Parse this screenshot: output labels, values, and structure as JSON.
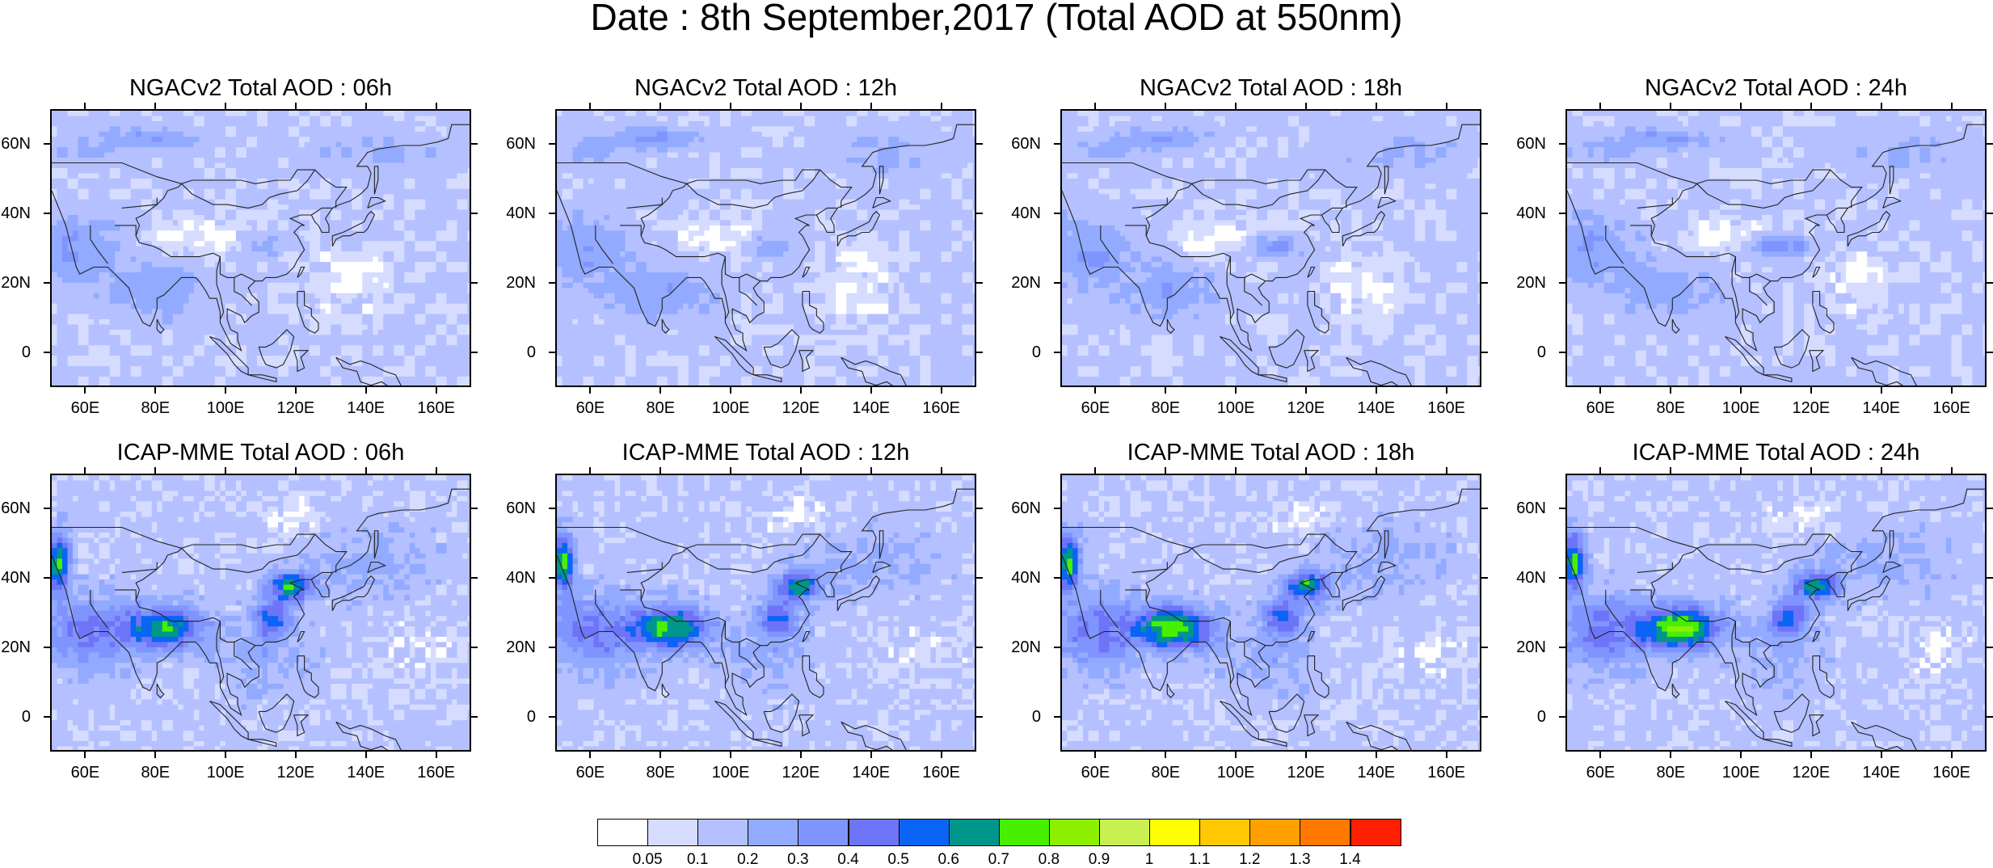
{
  "title": "Date : 8th September,2017 (Total AOD at 550nm)",
  "panels": [
    {
      "title": "NGACv2 Total AOD : 06h",
      "model": "NGACv2",
      "hour": "06h"
    },
    {
      "title": "NGACv2 Total AOD : 12h",
      "model": "NGACv2",
      "hour": "12h"
    },
    {
      "title": "NGACv2 Total AOD : 18h",
      "model": "NGACv2",
      "hour": "18h"
    },
    {
      "title": "NGACv2 Total AOD : 24h",
      "model": "NGACv2",
      "hour": "24h"
    },
    {
      "title": "ICAP-MME Total AOD : 06h",
      "model": "ICAP-MME",
      "hour": "06h"
    },
    {
      "title": "ICAP-MME Total AOD : 12h",
      "model": "ICAP-MME",
      "hour": "12h"
    },
    {
      "title": "ICAP-MME Total AOD : 18h",
      "model": "ICAP-MME",
      "hour": "18h"
    },
    {
      "title": "ICAP-MME Total AOD : 24h",
      "model": "ICAP-MME",
      "hour": "24h"
    }
  ],
  "lat_labels": [
    "60N",
    "40N",
    "20N",
    "0"
  ],
  "lat_values": [
    60,
    40,
    20,
    0
  ],
  "lon_labels": [
    "60E",
    "80E",
    "100E",
    "120E",
    "140E",
    "160E"
  ],
  "lon_values": [
    60,
    80,
    100,
    120,
    140,
    160
  ],
  "lat_range": [
    -10,
    70
  ],
  "lon_range": [
    50,
    170
  ],
  "colorbar": {
    "levels": [
      "0.05",
      "0.1",
      "0.2",
      "0.3",
      "0.4",
      "0.5",
      "0.6",
      "0.7",
      "0.8",
      "0.9",
      "1",
      "1.1",
      "1.2",
      "1.3",
      "1.4"
    ],
    "colors": [
      "#ffffff",
      "#d6dcff",
      "#b4c0ff",
      "#92aaff",
      "#8094ff",
      "#6e74f8",
      "#0a64f4",
      "#00968c",
      "#46f000",
      "#8cf000",
      "#c8f050",
      "#ffff00",
      "#ffc800",
      "#ffa000",
      "#ff7800",
      "#ff1e00"
    ]
  }
}
